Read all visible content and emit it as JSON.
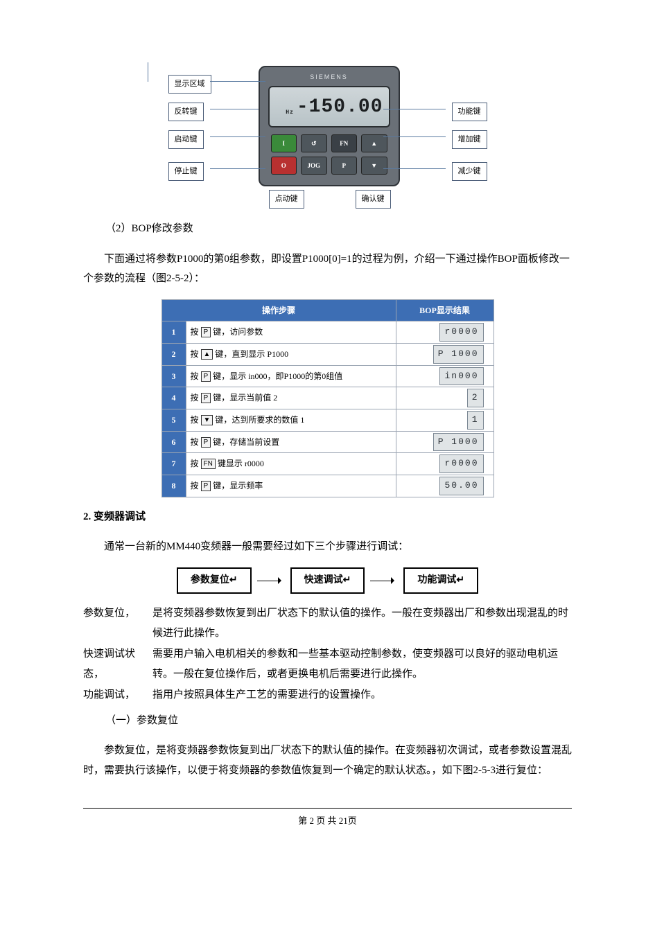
{
  "bop": {
    "brand": "SIEMENS",
    "lcd_value": "-150.00",
    "lcd_unit": "Hz",
    "callouts": {
      "display": "显示区域",
      "reverse": "反转键",
      "start": "启动键",
      "stop": "停止键",
      "fn": "功能键",
      "up": "增加键",
      "down": "减少键",
      "jog": "点动键",
      "p": "确认键"
    },
    "key_labels": {
      "start": "I",
      "reverse": "↺",
      "fn": "FN",
      "up": "▲",
      "stop": "O",
      "jog": "JOG",
      "p": "P",
      "down": "▼"
    }
  },
  "sec2_title": "（2）BOP修改参数",
  "sec2_text": "下面通过将参数P1000的第0组参数，即设置P1000[0]=1的过程为例，介绍一下通过操作BOP面板修改一个参数的流程（图2-5-2）：",
  "table": {
    "header_step": "操作步骤",
    "header_disp": "BOP显示结果",
    "rows": [
      {
        "n": "1",
        "key": "P",
        "txt": "键，访问参数",
        "disp": "r0000"
      },
      {
        "n": "2",
        "key": "▲",
        "txt": "键，直到显示 P1000",
        "disp": "P 1000"
      },
      {
        "n": "3",
        "key": "P",
        "txt": "键，显示 in000，即P1000的第0组值",
        "disp": "in000"
      },
      {
        "n": "4",
        "key": "P",
        "txt": "键，显示当前值 2",
        "disp": "2"
      },
      {
        "n": "5",
        "key": "▼",
        "txt": "键，达到所要求的数值 1",
        "disp": "1"
      },
      {
        "n": "6",
        "key": "P",
        "txt": "键，存储当前设置",
        "disp": "P 1000"
      },
      {
        "n": "7",
        "key": "FN",
        "txt": "键显示 r0000",
        "disp": "r0000"
      },
      {
        "n": "8",
        "key": "P",
        "txt": "键，显示频率",
        "disp": "50.00"
      }
    ],
    "press": "按"
  },
  "sec3_heading": "2.  变频器调试",
  "sec3_text": "通常一台新的MM440变频器一般需要经过如下三个步骤进行调试：",
  "flow": {
    "a": "参数复位↵",
    "b": "快速调试↵",
    "c": "功能调试↵"
  },
  "defs": {
    "a_term": "参数复位，",
    "a_body1": "是将变频器参数恢复到出厂状态下的默认值的操作。一般在变频器出厂和参数出现混乱的时候进行此操作。",
    "b_term": "快速调试状态，",
    "b_body1": "需要用户输入电机相关的参数和一些基本驱动控制参数，使变频器可以良好的驱动电机运转。一般在复位操作后，或者更换电机后需要进行此操作。",
    "c_term": "功能调试，",
    "c_body1": "指用户按照具体生产工艺的需要进行的设置操作。"
  },
  "sec4_title": "（一）参数复位",
  "sec4_text": "参数复位，是将变频器参数恢复到出厂状态下的默认值的操作。在变频器初次调试，或者参数设置混乱时，需要执行该操作，以便于将变频器的参数值恢复到一个确定的默认状态。，如下图2-5-3进行复位：",
  "footer": "第 2 页  共 21页"
}
